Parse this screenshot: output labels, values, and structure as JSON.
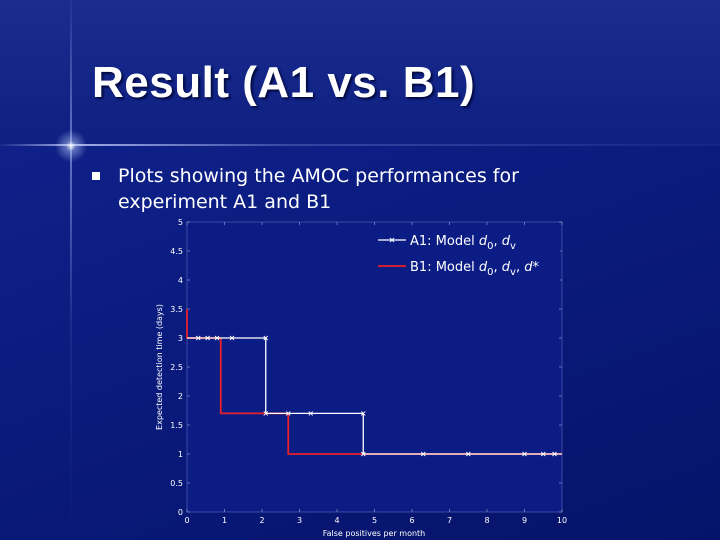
{
  "slide": {
    "title": "Result (A1 vs. B1)",
    "bullet": "Plots showing the AMOC performances for experiment A1 and B1"
  },
  "colors": {
    "background": "#0b1c80",
    "series_a": "#ffffff",
    "series_b": "#e8202a"
  },
  "chart_data": {
    "type": "line",
    "xlabel": "False positives per month",
    "ylabel": "Expected detection time (days)",
    "xlim": [
      0,
      10
    ],
    "ylim": [
      0,
      5
    ],
    "x_ticks": [
      0,
      1,
      2,
      3,
      4,
      5,
      6,
      7,
      8,
      9,
      10
    ],
    "y_ticks": [
      0,
      0.5,
      1,
      1.5,
      2,
      2.5,
      3,
      3.5,
      4,
      4.5,
      5
    ],
    "x_tick_labels": [
      "0",
      "1",
      "2",
      "3",
      "4",
      "5",
      "6",
      "7",
      "8",
      "9",
      "10"
    ],
    "y_tick_labels": [
      "0",
      "0.5",
      "1",
      "1.5",
      "2",
      "2.5",
      "3",
      "3.5",
      "4",
      "4.5",
      "5"
    ],
    "legend_position": "top-right",
    "series": [
      {
        "name": "A1: Model d0, dv",
        "legend": {
          "base": "A1: Model ",
          "v1": "d",
          "s1": "0",
          "sep1": ", ",
          "v2": "d",
          "s2": "v",
          "v3": "",
          "s3": "",
          "sep2": ""
        },
        "style": "step",
        "x": [
          0,
          0.3,
          0.55,
          0.8,
          1.2,
          2.1,
          2.1,
          2.7,
          3.3,
          4.7,
          4.7,
          6.3,
          7.5,
          9.0,
          9.5,
          9.8,
          10
        ],
        "y": [
          3,
          3,
          3,
          3,
          3,
          3,
          1.7,
          1.7,
          1.7,
          1.7,
          1.0,
          1.0,
          1.0,
          1.0,
          1.0,
          1.0,
          1.0
        ],
        "markers_x": [
          0.3,
          0.55,
          0.8,
          1.2,
          2.1,
          2.1,
          2.7,
          3.3,
          4.7,
          4.7,
          6.3,
          7.5,
          9.0,
          9.5,
          9.8
        ],
        "markers_y": [
          3,
          3,
          3,
          3,
          3,
          1.7,
          1.7,
          1.7,
          1.7,
          1.0,
          1.0,
          1.0,
          1.0,
          1.0,
          1.0
        ]
      },
      {
        "name": "B1: Model d0, dv, d*",
        "legend": {
          "base": "B1: Model ",
          "v1": "d",
          "s1": "0",
          "sep1": ", ",
          "v2": "d",
          "s2": "v",
          "v3": "d",
          "s3": "*",
          "sep2": ", "
        },
        "style": "step",
        "x": [
          0,
          0,
          0.9,
          0.9,
          2.7,
          2.7,
          10
        ],
        "y": [
          3.5,
          3,
          3,
          1.7,
          1.7,
          1.0,
          1.0
        ],
        "markers_x": [],
        "markers_y": []
      }
    ]
  }
}
